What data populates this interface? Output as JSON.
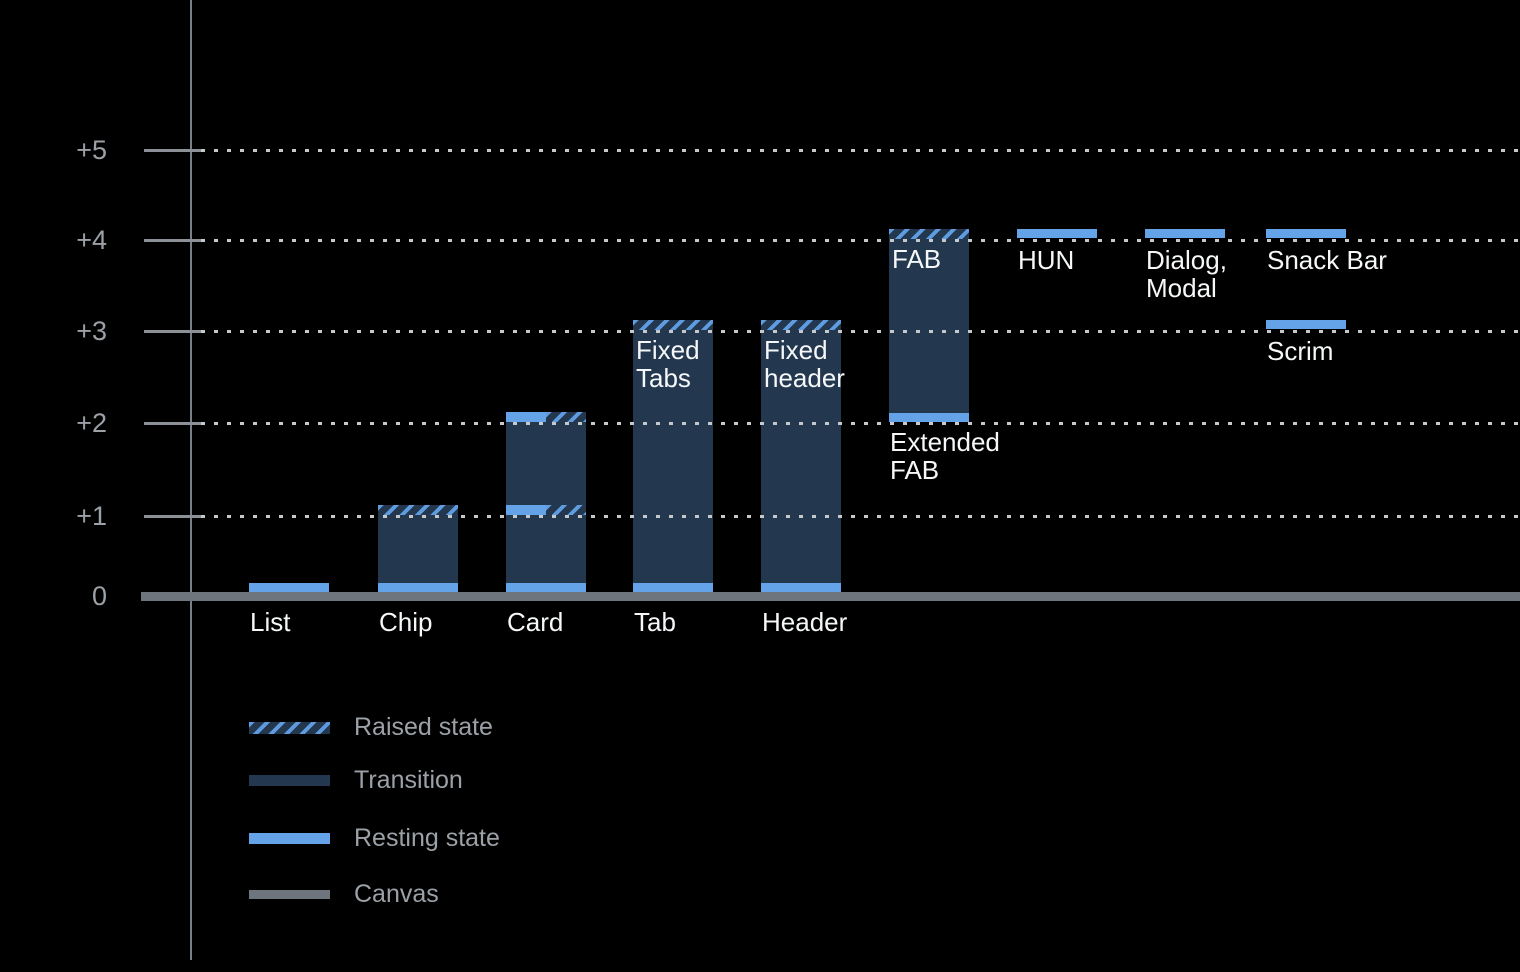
{
  "background_color": "#000000",
  "colors": {
    "resting_blue": "#64A3E8",
    "transition_navy": "#23384F",
    "raised_hatch_stripe": "#5E9BDF",
    "canvas_gray": "#6E757C",
    "axis_gray": "#797F86",
    "grid_dot_gray": "#C6C9CC",
    "tick_label_gray": "#9BA1A7",
    "bar_label_white": "#F5F7F8"
  },
  "chart_data": {
    "type": "bar",
    "title": "",
    "xlabel": "",
    "ylabel": "",
    "y_ticks": [
      "+5",
      "+4",
      "+3",
      "+2",
      "+1",
      "0"
    ],
    "y_levels": [
      5,
      4,
      3,
      2,
      1,
      0
    ],
    "ylim": [
      0,
      5.5
    ],
    "grid": "horizontal dotted lines at levels +1 through +5",
    "legend_position": "bottom-left",
    "legend": [
      {
        "kind": "raised",
        "label": "Raised state"
      },
      {
        "kind": "transition",
        "label": "Transition"
      },
      {
        "kind": "resting",
        "label": "Resting state"
      },
      {
        "kind": "canvas",
        "label": "Canvas"
      }
    ],
    "items": [
      {
        "name": "List",
        "col": 0,
        "axis_label": "List",
        "resting_levels": [
          0
        ]
      },
      {
        "name": "Chip",
        "col": 1,
        "axis_label": "Chip",
        "resting_levels": [
          0
        ],
        "transition": [
          0,
          1
        ],
        "raised_level": 1
      },
      {
        "name": "Card",
        "col": 2,
        "axis_label": "Card",
        "resting_levels": [
          0
        ],
        "transition": [
          0,
          2
        ],
        "half_bands": [
          1,
          2
        ]
      },
      {
        "name": "Fixed Tabs",
        "col": 3,
        "axis_label": "Tab",
        "inner_label": "Fixed\nTabs",
        "resting_levels": [
          0
        ],
        "transition": [
          0,
          3
        ],
        "raised_level": 3
      },
      {
        "name": "Fixed header",
        "col": 4,
        "axis_label": "Header",
        "inner_label": "Fixed\nheader",
        "resting_levels": [
          0
        ],
        "transition": [
          0,
          3
        ],
        "raised_level": 3
      },
      {
        "name": "FAB",
        "col": 5,
        "inner_label": "FAB",
        "below_label": "Extended\nFAB",
        "below_label_level": 2,
        "resting_levels": [
          2
        ],
        "transition": [
          2,
          4
        ],
        "raised_level": 4
      },
      {
        "name": "HUN",
        "col": 6,
        "float_label": "HUN",
        "resting_levels": [
          4
        ]
      },
      {
        "name": "Dialog, Modal",
        "col": 7,
        "float_label": "Dialog,\nModal",
        "resting_levels": [
          4
        ]
      },
      {
        "name": "Snack Bar",
        "col": 8,
        "float_label": "Snack Bar",
        "resting_levels": [
          4
        ]
      },
      {
        "name": "Scrim",
        "col": 8,
        "float_label": "Scrim",
        "resting_levels": [
          3
        ]
      }
    ]
  }
}
